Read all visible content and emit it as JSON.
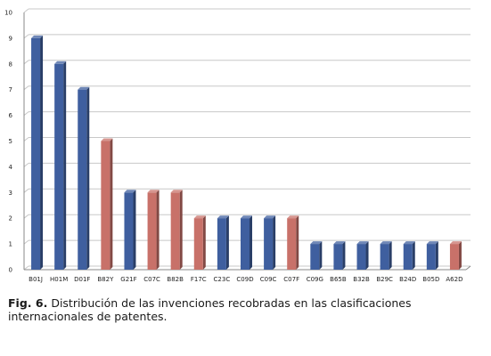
{
  "chart_data": {
    "type": "bar",
    "categories": [
      "B01J",
      "H01M",
      "D01F",
      "B82Y",
      "G21F",
      "C07C",
      "B82B",
      "F17C",
      "C23C",
      "C09D",
      "C09C",
      "C07F",
      "C09G",
      "B65B",
      "B32B",
      "B29C",
      "B24D",
      "B05D",
      "A62D"
    ],
    "values": [
      9,
      8,
      7,
      5,
      3,
      3,
      3,
      2,
      2,
      2,
      2,
      2,
      1,
      1,
      1,
      1,
      1,
      1,
      1
    ],
    "bar_colors": [
      "#3f5f9f",
      "#3f5f9f",
      "#3f5f9f",
      "#c87169",
      "#3f5f9f",
      "#c87169",
      "#c87169",
      "#c87169",
      "#3f5f9f",
      "#3f5f9f",
      "#3f5f9f",
      "#c87169",
      "#3f5f9f",
      "#3f5f9f",
      "#3f5f9f",
      "#3f5f9f",
      "#3f5f9f",
      "#3f5f9f",
      "#c87169"
    ],
    "colors": {
      "blue": "#3f5f9f",
      "red": "#c87169",
      "grid": "#c8c8c8",
      "axis": "#888888"
    },
    "ylim": [
      0,
      10
    ],
    "yticks": [
      "0",
      "1",
      "2",
      "3",
      "4",
      "5",
      "6",
      "7",
      "8",
      "9",
      "10"
    ],
    "grid": true,
    "legend": "none"
  },
  "caption": {
    "label": "Fig. 6.",
    "text": "Distribución de las invenciones recobradas en las clasificaciones internacionales de patentes."
  }
}
